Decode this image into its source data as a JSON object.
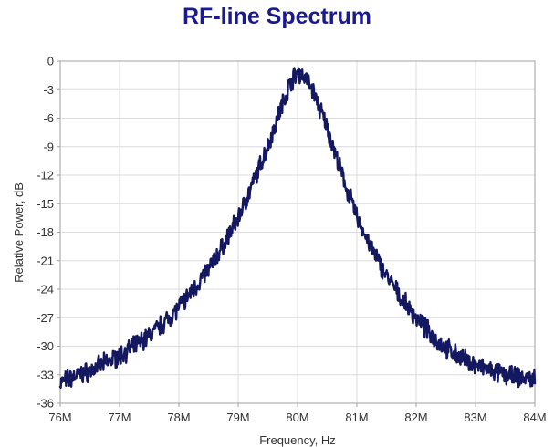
{
  "chart_data": {
    "type": "line",
    "title": "RF-line Spectrum",
    "xlabel": "Frequency, Hz",
    "ylabel": "Relative Power, dB",
    "xlim": [
      76000000,
      84000000
    ],
    "ylim": [
      -36,
      0
    ],
    "x_ticks": [
      76000000,
      77000000,
      78000000,
      79000000,
      80000000,
      81000000,
      82000000,
      83000000,
      84000000
    ],
    "x_tick_labels": [
      "76M",
      "77M",
      "78M",
      "79M",
      "80M",
      "81M",
      "82M",
      "83M",
      "84M"
    ],
    "y_ticks": [
      0,
      -3,
      -6,
      -9,
      -12,
      -15,
      -18,
      -21,
      -24,
      -27,
      -30,
      -33,
      -36
    ],
    "y_tick_labels": [
      "0",
      "-3",
      "-6",
      "-9",
      "-12",
      "-15",
      "-18",
      "-21",
      "-24",
      "-27",
      "-30",
      "-33",
      "-36"
    ],
    "grid": true,
    "legend": "none",
    "series": [
      {
        "x": [
          76000000,
          76250000,
          76500000,
          76750000,
          77000000,
          77250000,
          77500000,
          77750000,
          78000000,
          78250000,
          78500000,
          78750000,
          79000000,
          79250000,
          79500000,
          79750000,
          79900000,
          80000000,
          80100000,
          80250000,
          80500000,
          80750000,
          81000000,
          81250000,
          81500000,
          81750000,
          82000000,
          82250000,
          82500000,
          82750000,
          83000000,
          83250000,
          83500000,
          83750000,
          84000000
        ],
        "values": [
          -33.8,
          -33.2,
          -32.6,
          -31.8,
          -31.0,
          -30.0,
          -28.9,
          -27.5,
          -25.9,
          -24.0,
          -21.9,
          -19.4,
          -16.5,
          -12.9,
          -8.9,
          -4.4,
          -2.0,
          -1.2,
          -1.5,
          -3.0,
          -7.0,
          -12.0,
          -16.4,
          -19.8,
          -22.6,
          -25.0,
          -27.0,
          -28.8,
          -30.2,
          -31.2,
          -32.0,
          -32.6,
          -33.0,
          -33.3,
          -33.5
        ]
      }
    ],
    "line_color": "#141860",
    "title_color": "#1a1a8c",
    "grid_color": "#dcdcdc",
    "axis_color": "#a0a0a0"
  }
}
